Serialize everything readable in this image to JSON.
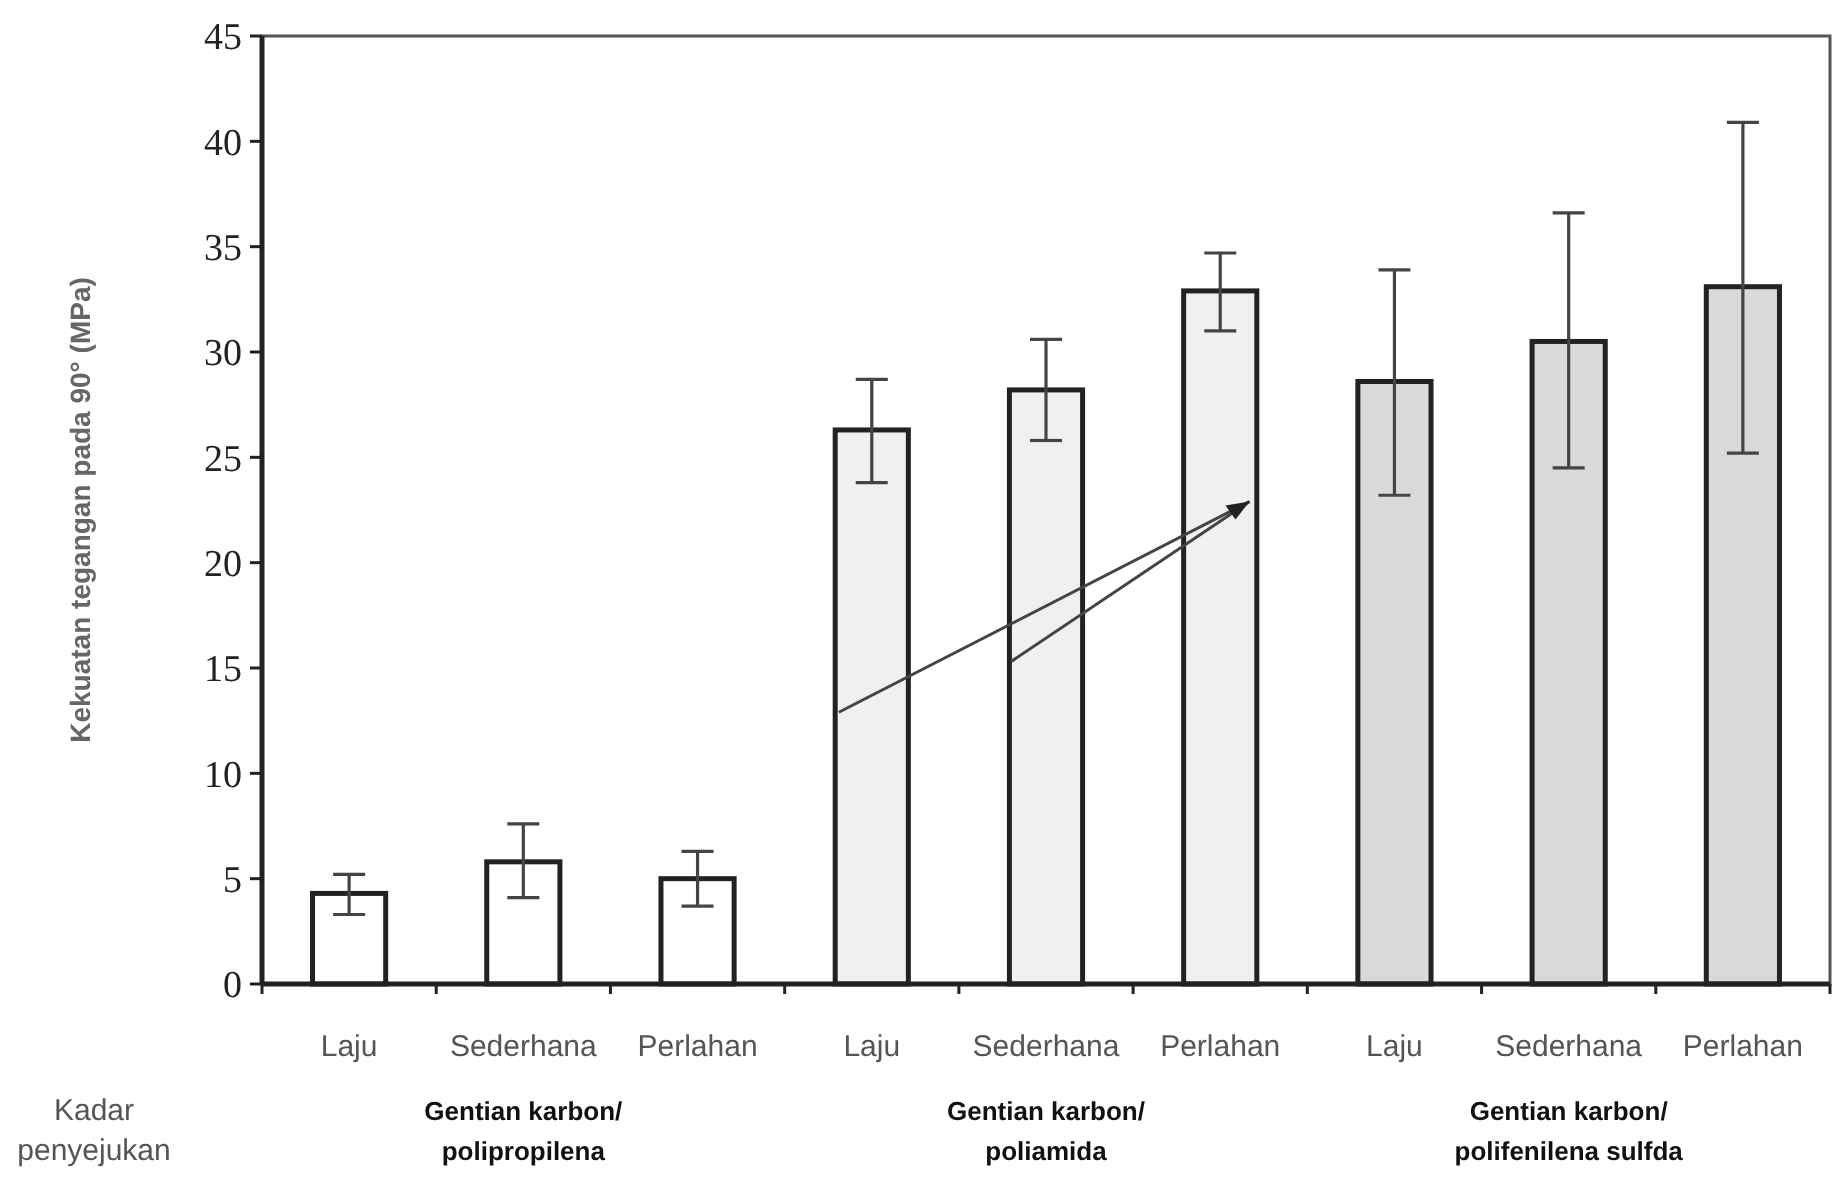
{
  "chart_data": {
    "type": "bar",
    "ylabel": "Kekuatan tegangan pada 90° (MPa)",
    "xlabel": "Kadar penyejukan",
    "categories": [
      "Laju",
      "Sederhana",
      "Perlahan",
      "Laju",
      "Sederhana",
      "Perlahan",
      "Laju",
      "Sederhana",
      "Perlahan"
    ],
    "values": [
      4.3,
      5.8,
      5.0,
      26.3,
      28.2,
      32.9,
      28.6,
      30.5,
      33.1
    ],
    "errors": [
      [
        3.3,
        5.2
      ],
      [
        4.1,
        7.6
      ],
      [
        3.7,
        6.3
      ],
      [
        23.8,
        28.7
      ],
      [
        25.8,
        30.6
      ],
      [
        31.0,
        34.7
      ],
      [
        23.2,
        33.9
      ],
      [
        24.5,
        36.6
      ],
      [
        25.2,
        40.9
      ]
    ],
    "colors": [
      "#ffffff",
      "#ffffff",
      "#ffffff",
      "#f0f0f0",
      "#f0f0f0",
      "#f0f0f0",
      "#d9d9d9",
      "#d9d9d9",
      "#d9d9d9"
    ],
    "annotations": [
      "Gentian karbon/\npolipropilena",
      "Gentian karbon/\npoliamida",
      "Gentian karbon/\npolifenilena sulfda"
    ],
    "ylim": [
      0,
      45
    ],
    "yticks": [
      0,
      5,
      10,
      15,
      20,
      25,
      30,
      35,
      40,
      45
    ],
    "grid": false
  }
}
